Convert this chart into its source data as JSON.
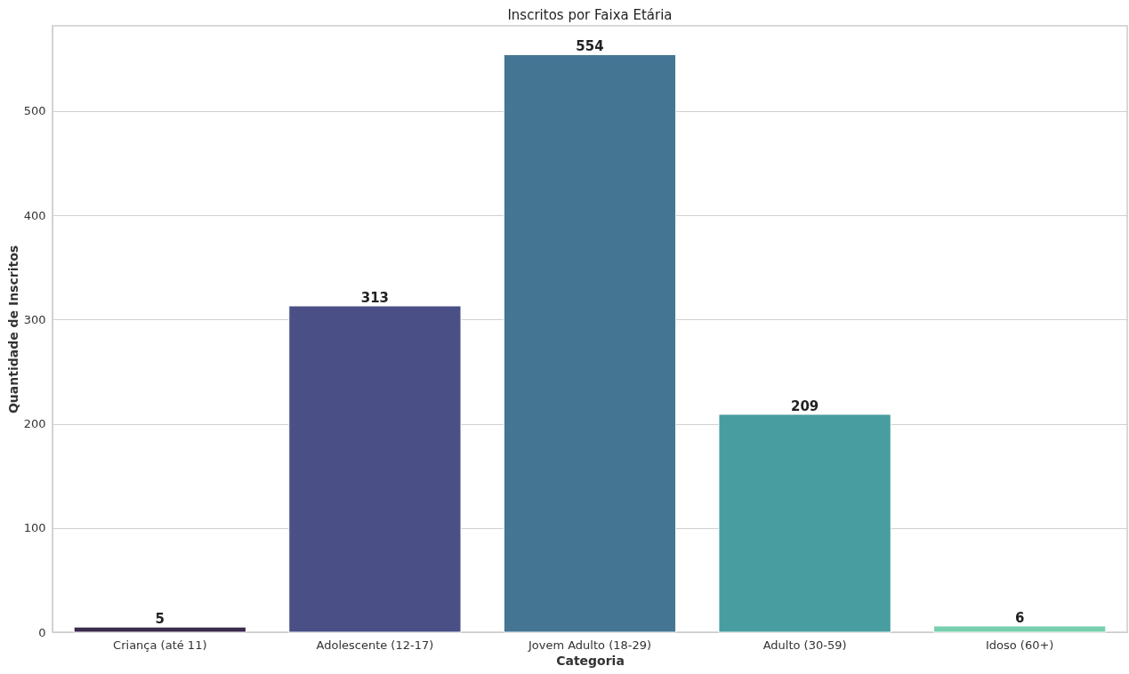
{
  "chart_data": {
    "type": "bar",
    "title": "Inscritos por Faixa Etária",
    "xlabel": "Categoria",
    "ylabel": "Quantidade de Inscritos",
    "categories": [
      "Criança (até 11)",
      "Adolescente (12-17)",
      "Jovem Adulto (18-29)",
      "Adulto (30-59)",
      "Idoso (60+)"
    ],
    "values": [
      5,
      313,
      554,
      209,
      6
    ],
    "colors": [
      "#3b2b4c",
      "#4a5085",
      "#447694",
      "#479d9f",
      "#78cfae"
    ],
    "ylim": [
      0,
      581.7
    ],
    "yticks": [
      0,
      100,
      200,
      300,
      400,
      500
    ],
    "grid": "y",
    "data_labels": true
  }
}
